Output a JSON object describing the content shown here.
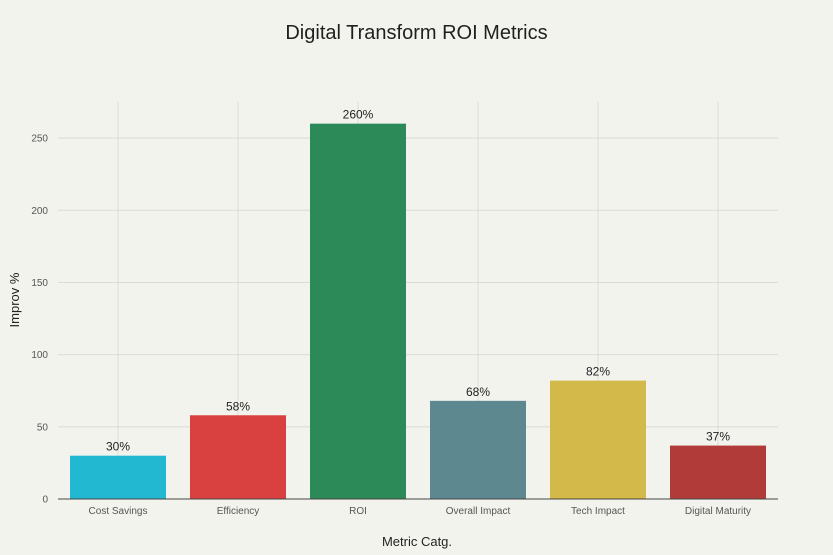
{
  "chart_data": {
    "type": "bar",
    "title": "Digital Transform ROI Metrics",
    "xlabel": "Metric Catg.",
    "ylabel": "Improv %",
    "categories": [
      "Cost Savings",
      "Efficiency",
      "ROI",
      "Overall Impact",
      "Tech Impact",
      "Digital Maturity"
    ],
    "values": [
      30,
      58,
      260,
      68,
      82,
      37
    ],
    "data_labels": [
      "30%",
      "58%",
      "260%",
      "68%",
      "82%",
      "37%"
    ],
    "colors": [
      "#22b8d1",
      "#d94040",
      "#2b8a57",
      "#5e8890",
      "#d2b94a",
      "#b03b38"
    ],
    "ylim": [
      0,
      275
    ],
    "yticks": [
      0,
      50,
      100,
      150,
      200,
      250
    ],
    "grid": true,
    "legend": "none"
  }
}
